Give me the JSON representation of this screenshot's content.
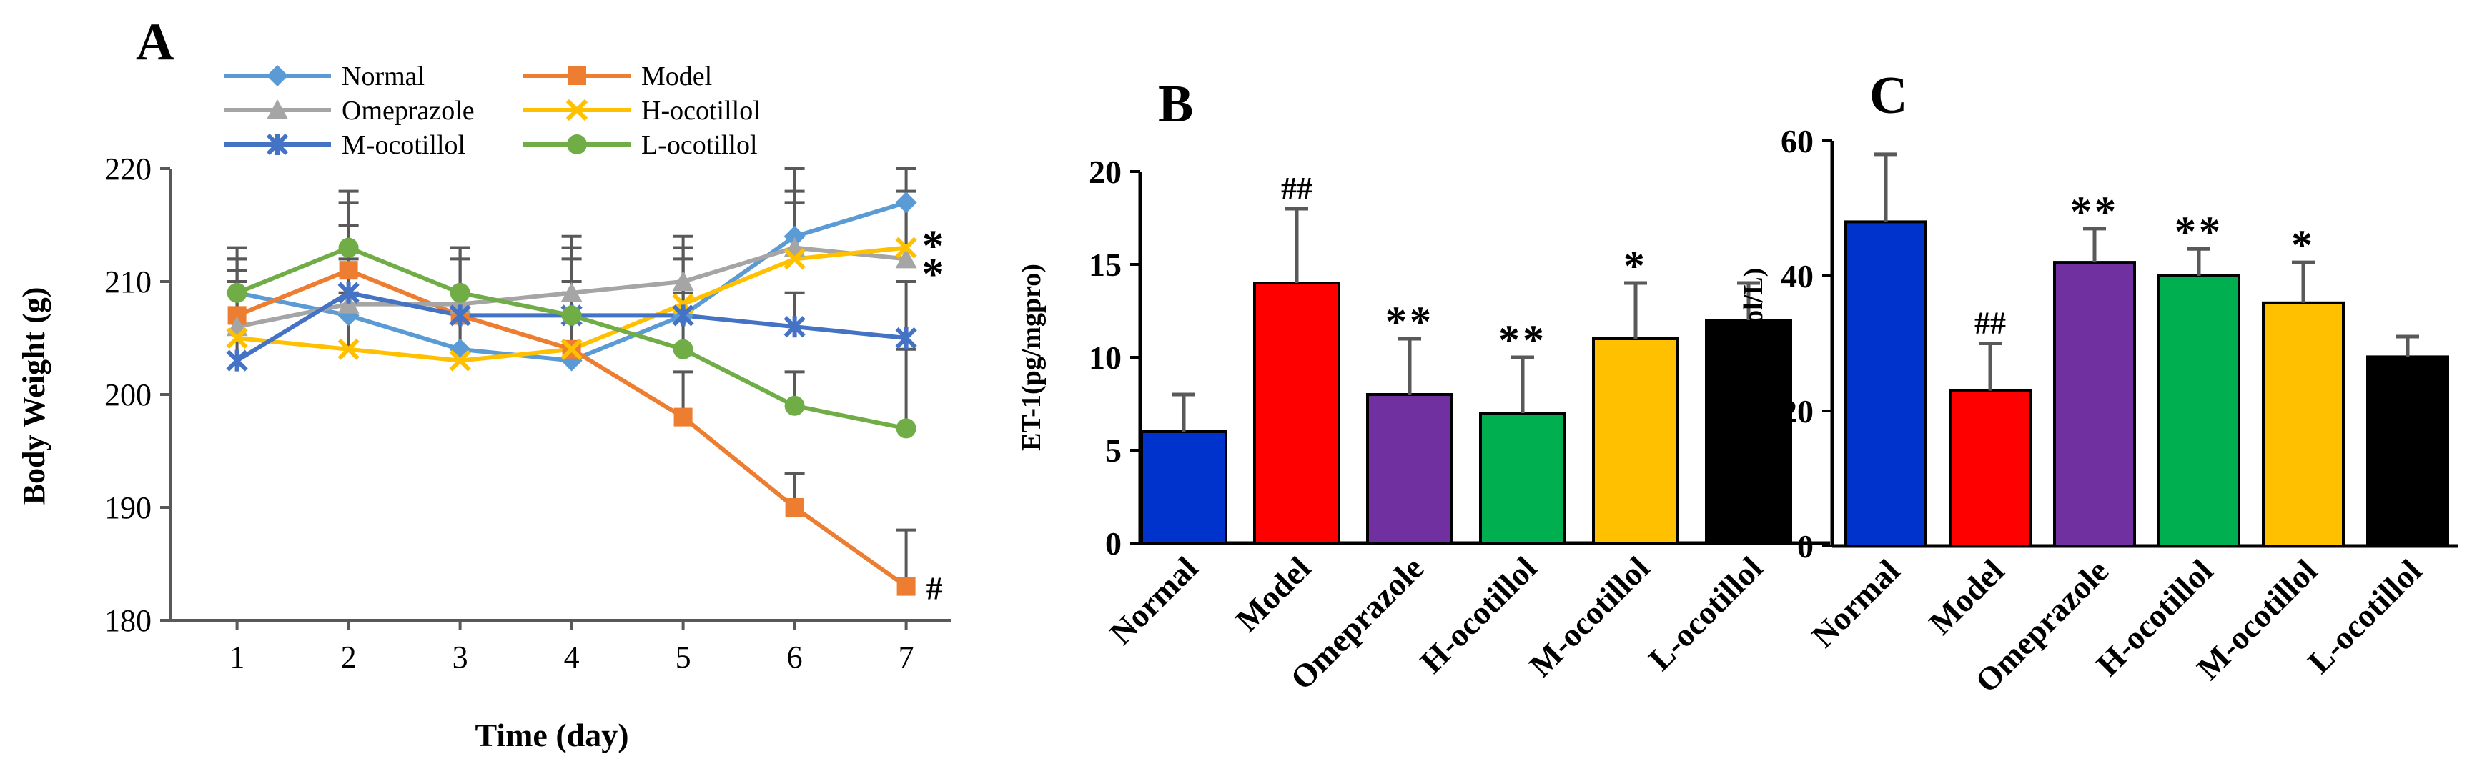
{
  "chart_data": [
    {
      "panel_label": "A",
      "type": "line",
      "xlabel": "Time (day)",
      "ylabel": "Body Weight (g)",
      "x": [
        1,
        2,
        3,
        4,
        5,
        6,
        7
      ],
      "xlim": [
        0.4,
        7.4
      ],
      "ylim": [
        180,
        220
      ],
      "yticks": [
        180,
        190,
        200,
        210,
        220
      ],
      "grid": false,
      "legend_position": "top",
      "series": [
        {
          "name": "Normal",
          "color": "#5B9BD5",
          "marker": "diamond",
          "values": [
            209,
            207,
            204,
            203,
            207,
            214,
            217
          ],
          "errors": [
            3,
            5,
            4,
            4,
            5,
            6,
            3
          ]
        },
        {
          "name": "Model",
          "color": "#ED7D31",
          "marker": "square",
          "values": [
            207,
            211,
            207,
            204,
            198,
            190,
            183
          ],
          "errors": [
            5,
            6,
            5,
            6,
            4,
            3,
            5
          ]
        },
        {
          "name": "Omeprazole",
          "color": "#A5A5A5",
          "marker": "triangle",
          "values": [
            206,
            208,
            208,
            209,
            210,
            213,
            212
          ],
          "errors": [
            5,
            7,
            5,
            5,
            4,
            5,
            5
          ]
        },
        {
          "name": "H-ocotillol",
          "color": "#FFC000",
          "marker": "x",
          "values": [
            205,
            204,
            203,
            204,
            208,
            212,
            213
          ],
          "errors": [
            5,
            5,
            5,
            5,
            5,
            5,
            5
          ]
        },
        {
          "name": "M-ocotillol",
          "color": "#4472C4",
          "marker": "star",
          "values": [
            203,
            209,
            207,
            207,
            207,
            206,
            205
          ],
          "errors": [
            6,
            6,
            6,
            6,
            6,
            3,
            5
          ]
        },
        {
          "name": "L-ocotillol",
          "color": "#70AD47",
          "marker": "circle",
          "values": [
            209,
            213,
            209,
            207,
            204,
            199,
            197
          ],
          "errors": [
            4,
            5,
            4,
            5,
            5,
            3,
            7
          ]
        }
      ],
      "annotations": [
        {
          "text": "#",
          "at_x": 7,
          "at_y": 183
        },
        {
          "text": "*",
          "at_x": 7,
          "at_y": 213.5
        },
        {
          "text": "*",
          "at_x": 7,
          "at_y": 211
        }
      ]
    },
    {
      "panel_label": "B",
      "type": "bar",
      "xlabel": "",
      "ylabel": "ET-1(pg/mgpro)",
      "ylim": [
        0,
        20
      ],
      "yticks": [
        0,
        5,
        10,
        15,
        20
      ],
      "grid": false,
      "categories": [
        "Normal",
        "Model",
        "Omeprazole",
        "H-ocotillol",
        "M-ocotillol",
        "L-ocotillol"
      ],
      "values": [
        6,
        14,
        8,
        7,
        11,
        12
      ],
      "errors": [
        2,
        4,
        3,
        3,
        3,
        2
      ],
      "colors": [
        "#0033CC",
        "#FF0000",
        "#7030A0",
        "#00B050",
        "#FFC000",
        "#000000"
      ],
      "significance": [
        "",
        "##",
        "**",
        "**",
        "*",
        ""
      ]
    },
    {
      "panel_label": "C",
      "type": "bar",
      "xlabel": "",
      "ylabel": "NO (μmol/L)",
      "ylim": [
        0,
        60
      ],
      "yticks": [
        0,
        20,
        40,
        60
      ],
      "grid": false,
      "categories": [
        "Normal",
        "Model",
        "Omeprazole",
        "H-ocotillol",
        "M-ocotillol",
        "L-ocotillol"
      ],
      "values": [
        48,
        23,
        42,
        40,
        36,
        28
      ],
      "errors": [
        10,
        7,
        5,
        4,
        6,
        3
      ],
      "colors": [
        "#0033CC",
        "#FF0000",
        "#7030A0",
        "#00B050",
        "#FFC000",
        "#000000"
      ],
      "significance": [
        "",
        "##",
        "**",
        "**",
        "*",
        ""
      ]
    }
  ]
}
